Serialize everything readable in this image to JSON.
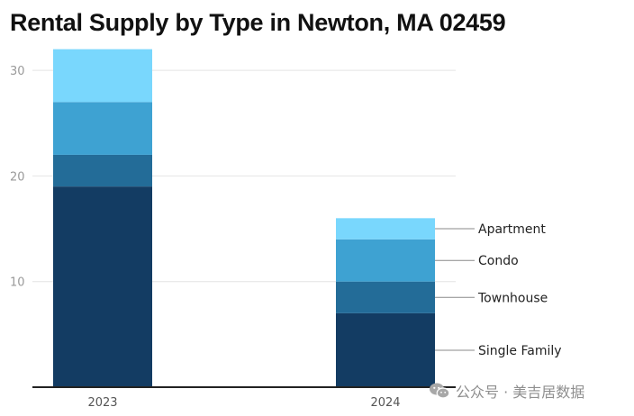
{
  "chart_data": {
    "type": "bar",
    "stacked": true,
    "title": "Rental Supply by Type in Newton, MA 02459",
    "xlabel": "",
    "ylabel": "",
    "categories": [
      "2023",
      "2024"
    ],
    "series": [
      {
        "name": "Single Family",
        "values": [
          19,
          7
        ],
        "color": "#133c63"
      },
      {
        "name": "Townhouse",
        "values": [
          3,
          3
        ],
        "color": "#236c98"
      },
      {
        "name": "Condo",
        "values": [
          5,
          4
        ],
        "color": "#3ea2d2"
      },
      {
        "name": "Apartment",
        "values": [
          5,
          2
        ],
        "color": "#79d7fd"
      }
    ],
    "ylim": [
      0,
      34
    ],
    "yticks": [
      "10",
      "20",
      "30"
    ],
    "grid": true,
    "legend": "right (labels attached to 2024 bar)"
  },
  "watermark": {
    "icon": "wechat-icon",
    "text": "公众号 · 美吉居数据"
  }
}
